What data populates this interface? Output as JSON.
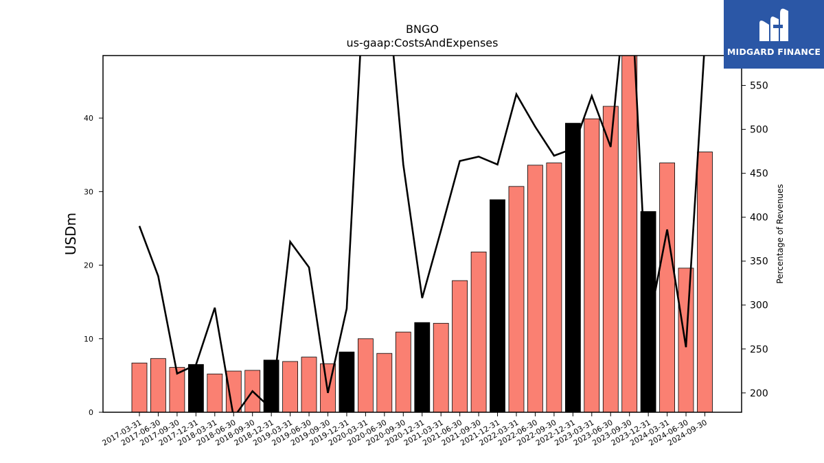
{
  "chart_data": {
    "type": "bar",
    "title": "BNGO",
    "subtitle": "us-gaap:CostsAndExpenses",
    "ylabel": "USDm",
    "y2label": "Percentage of Revenues",
    "ylim": [
      0,
      48.5
    ],
    "y2lim": [
      178,
      584
    ],
    "yticks": [
      "0",
      "10",
      "20",
      "30",
      "40"
    ],
    "y2ticks": [
      "200",
      "250",
      "300",
      "350",
      "400",
      "450",
      "500",
      "550"
    ],
    "categories": [
      "2017-03-31",
      "2017-06-30",
      "2017-09-30",
      "2017-12-31",
      "2018-03-31",
      "2018-06-30",
      "2018-09-30",
      "2018-12-31",
      "2019-03-31",
      "2019-06-30",
      "2019-09-30",
      "2019-12-31",
      "2020-03-31",
      "2020-06-30",
      "2020-09-30",
      "2020-12-31",
      "2021-03-31",
      "2021-06-30",
      "2021-09-30",
      "2021-12-31",
      "2022-03-31",
      "2022-06-30",
      "2022-09-30",
      "2022-12-31",
      "2023-03-31",
      "2023-06-30",
      "2023-09-30",
      "2023-12-31",
      "2024-03-31",
      "2024-06-30",
      "2024-09-30"
    ],
    "series": [
      {
        "kind": "bar",
        "values": [
          6.7,
          7.3,
          6.1,
          6.5,
          5.2,
          5.6,
          5.7,
          7.1,
          6.9,
          7.5,
          6.6,
          8.2,
          10.0,
          8.0,
          10.9,
          12.2,
          12.1,
          17.9,
          21.8,
          28.9,
          30.7,
          33.6,
          33.9,
          39.3,
          39.9,
          41.6,
          49.0,
          27.3,
          33.9,
          19.6,
          35.4
        ],
        "year_end_color": "#000000",
        "quarter_color": "#fa8072"
      },
      {
        "kind": "line",
        "axis": "right",
        "color": "#000000",
        "values": [
          390,
          333,
          222,
          232,
          297,
          172,
          202,
          182,
          372,
          343,
          200,
          296,
          700,
          700,
          460,
          308,
          385,
          464,
          469,
          460,
          540,
          503,
          470,
          478,
          538,
          480,
          700,
          275,
          386,
          252,
          600
        ]
      }
    ]
  },
  "logo": {
    "text": "MIDGARD FINANCE",
    "name": "midgard-finance-logo"
  }
}
